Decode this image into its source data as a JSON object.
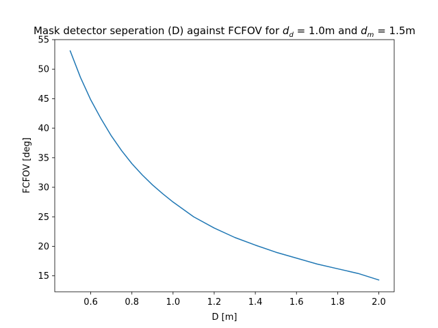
{
  "chart_data": {
    "type": "line",
    "title": {
      "prefix": "Mask detector seperation (D) against FCFOV for ",
      "math1_var": "d",
      "math1_sub": "d",
      "math1_rest": " = 1.0",
      "unit1": "m and ",
      "math2_var": "d",
      "math2_sub": "m",
      "math2_rest": " = 1.5",
      "unit2": "m"
    },
    "xlabel": "D [m]",
    "ylabel": "FCFOV [deg]",
    "xlim": [
      0.425,
      2.075
    ],
    "ylim": [
      12.3,
      55.0
    ],
    "xticks": [
      0.6,
      0.8,
      1.0,
      1.2,
      1.4,
      1.6,
      1.8,
      2.0
    ],
    "xtick_labels": [
      "0.6",
      "0.8",
      "1.0",
      "1.2",
      "1.4",
      "1.6",
      "1.8",
      "2.0"
    ],
    "yticks": [
      15,
      20,
      25,
      30,
      35,
      40,
      45,
      50,
      55
    ],
    "ytick_labels": [
      "15",
      "20",
      "25",
      "30",
      "35",
      "40",
      "45",
      "50",
      "55"
    ],
    "grid": false,
    "legend": "none",
    "series": [
      {
        "color": "#1f77b4",
        "x": [
          0.5,
          0.55,
          0.6,
          0.65,
          0.7,
          0.75,
          0.8,
          0.85,
          0.9,
          0.95,
          1.0,
          1.1,
          1.2,
          1.3,
          1.4,
          1.5,
          1.6,
          1.7,
          1.8,
          1.9,
          2.0
        ],
        "y": [
          53.1,
          48.6,
          44.8,
          41.6,
          38.7,
          36.2,
          34.0,
          32.1,
          30.4,
          28.9,
          27.5,
          25.0,
          23.1,
          21.5,
          20.2,
          19.0,
          18.0,
          17.0,
          16.2,
          15.4,
          14.3
        ]
      }
    ]
  }
}
